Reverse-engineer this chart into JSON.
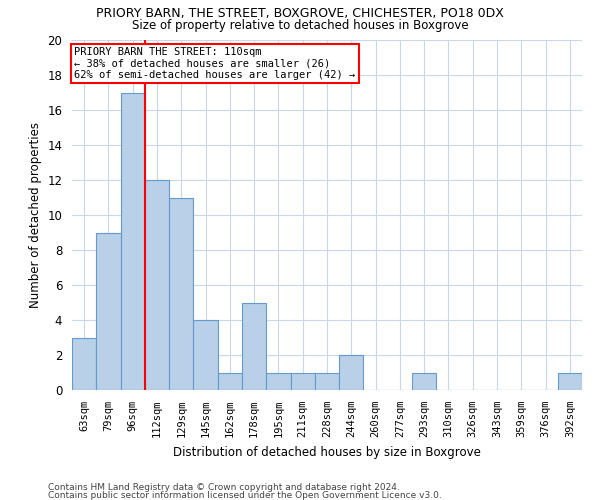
{
  "title": "PRIORY BARN, THE STREET, BOXGROVE, CHICHESTER, PO18 0DX",
  "subtitle": "Size of property relative to detached houses in Boxgrove",
  "xlabel": "Distribution of detached houses by size in Boxgrove",
  "ylabel": "Number of detached properties",
  "categories": [
    "63sqm",
    "79sqm",
    "96sqm",
    "112sqm",
    "129sqm",
    "145sqm",
    "162sqm",
    "178sqm",
    "195sqm",
    "211sqm",
    "228sqm",
    "244sqm",
    "260sqm",
    "277sqm",
    "293sqm",
    "310sqm",
    "326sqm",
    "343sqm",
    "359sqm",
    "376sqm",
    "392sqm"
  ],
  "values": [
    3,
    9,
    17,
    12,
    11,
    4,
    1,
    5,
    1,
    1,
    1,
    2,
    0,
    0,
    1,
    0,
    0,
    0,
    0,
    0,
    1
  ],
  "bar_color": "#b8d0e8",
  "bar_edge_color": "#6699cc",
  "red_line_x": 2.5,
  "ylim": [
    0,
    20
  ],
  "yticks": [
    0,
    2,
    4,
    6,
    8,
    10,
    12,
    14,
    16,
    18,
    20
  ],
  "annotation_title": "PRIORY BARN THE STREET: 110sqm",
  "annotation_line1": "← 38% of detached houses are smaller (26)",
  "annotation_line2": "62% of semi-detached houses are larger (42) →",
  "footer1": "Contains HM Land Registry data © Crown copyright and database right 2024.",
  "footer2": "Contains public sector information licensed under the Open Government Licence v3.0.",
  "background_color": "#ffffff",
  "grid_color": "#c8d8e8"
}
